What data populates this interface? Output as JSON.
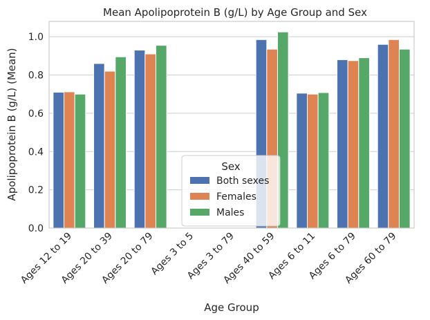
{
  "chart_data": {
    "type": "bar",
    "title": "Mean Apolipoprotein B  (g/L) by Age Group and Sex",
    "xlabel": "Age Group",
    "ylabel": "Apolipoprotein B  (g/L) (Mean)",
    "ylim": [
      0,
      1.08
    ],
    "yticks": [
      "0.0",
      "0.2",
      "0.4",
      "0.6",
      "0.8",
      "1.0"
    ],
    "ytick_values": [
      0,
      0.2,
      0.4,
      0.6,
      0.8,
      1.0
    ],
    "grid": true,
    "legend": {
      "title": "Sex",
      "placement": "bottom-center"
    },
    "categories": [
      "Ages 12 to 19",
      "Ages 20 to 39",
      "Ages 20 to 79",
      "Ages 3 to 5",
      "Ages 3 to 79",
      "Ages 40 to 59",
      "Ages 6 to 11",
      "Ages 6 to 79",
      "Ages 60 to 79"
    ],
    "series": [
      {
        "name": "Both sexes",
        "color": "#4c72b0",
        "values": [
          0.71,
          0.86,
          0.93,
          null,
          null,
          0.985,
          0.705,
          0.88,
          0.96
        ]
      },
      {
        "name": "Females",
        "color": "#dd8452",
        "values": [
          0.712,
          0.82,
          0.91,
          null,
          null,
          0.935,
          0.7,
          0.875,
          0.985
        ]
      },
      {
        "name": "Males",
        "color": "#55a868",
        "values": [
          0.7,
          0.895,
          0.955,
          null,
          null,
          1.025,
          0.708,
          0.89,
          0.935
        ]
      }
    ]
  }
}
